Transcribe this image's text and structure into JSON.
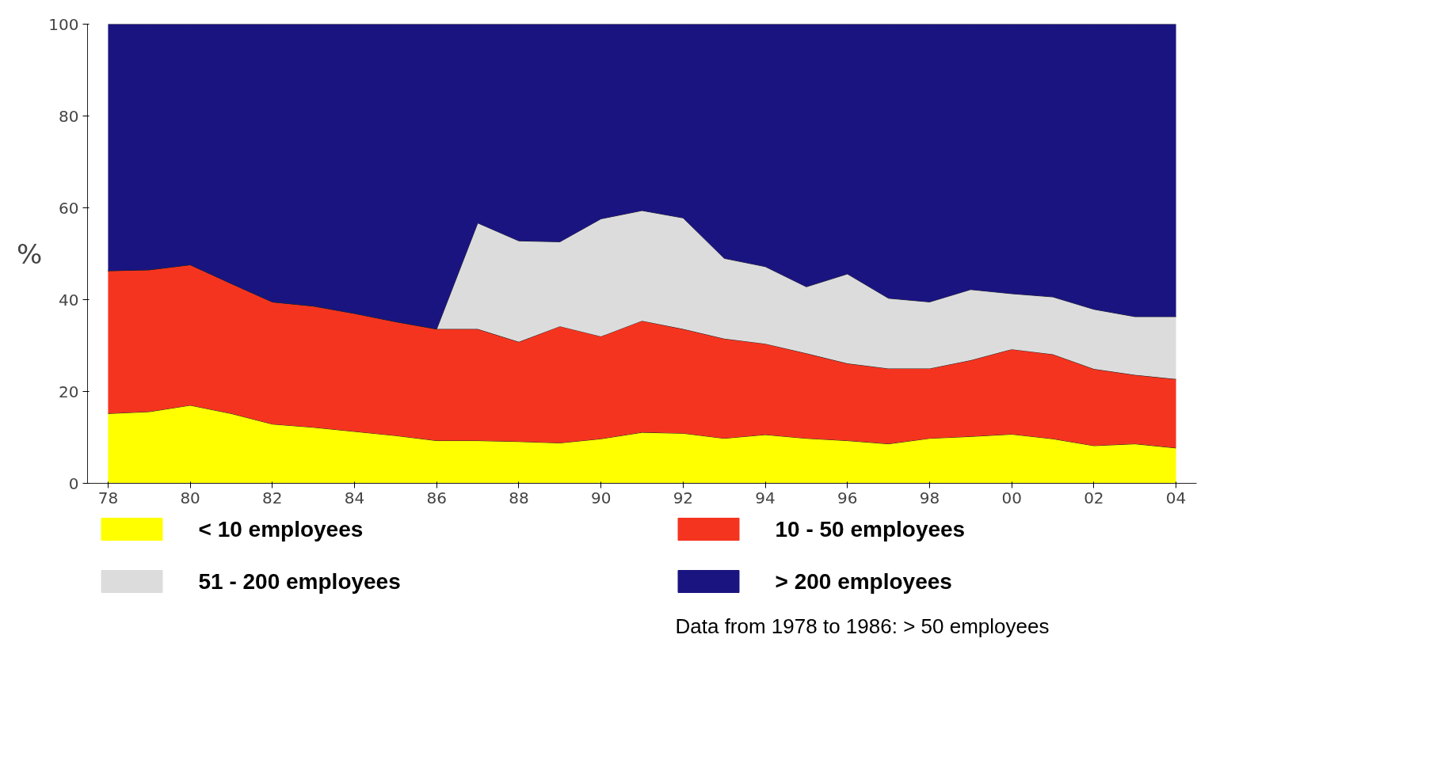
{
  "chart_data": {
    "type": "area",
    "stacked": true,
    "ylabel": "%",
    "legend": "bottom",
    "grid": false,
    "x": [
      1978,
      1979,
      1980,
      1981,
      1982,
      1983,
      1984,
      1985,
      1986,
      1987,
      1988,
      1989,
      1990,
      1991,
      1992,
      1993,
      1994,
      1995,
      1996,
      1997,
      1998,
      1999,
      2000,
      2001,
      2002,
      2003,
      2004
    ],
    "xlim": [
      1977.5,
      2004.5
    ],
    "xticks": [
      {
        "value": 1978,
        "label": "78"
      },
      {
        "value": 1980,
        "label": "80"
      },
      {
        "value": 1982,
        "label": "82"
      },
      {
        "value": 1984,
        "label": "84"
      },
      {
        "value": 1986,
        "label": "86"
      },
      {
        "value": 1988,
        "label": "88"
      },
      {
        "value": 1990,
        "label": "90"
      },
      {
        "value": 1992,
        "label": "92"
      },
      {
        "value": 1994,
        "label": "94"
      },
      {
        "value": 1996,
        "label": "96"
      },
      {
        "value": 1998,
        "label": "98"
      },
      {
        "value": 2000,
        "label": "00"
      },
      {
        "value": 2002,
        "label": "02"
      },
      {
        "value": 2004,
        "label": "04"
      }
    ],
    "ylim": [
      0,
      100
    ],
    "yticks": [
      0,
      20,
      40,
      60,
      80,
      100
    ],
    "series": [
      {
        "name": "< 10 employees",
        "color": "#ffff00",
        "values": [
          15.2,
          15.6,
          17.0,
          15.2,
          12.9,
          12.2,
          11.3,
          10.4,
          9.3,
          9.3,
          9.1,
          8.8,
          9.7,
          11.1,
          10.9,
          9.8,
          10.6,
          9.8,
          9.3,
          8.6,
          9.8,
          10.2,
          10.7,
          9.7,
          8.2,
          8.6,
          7.7
        ]
      },
      {
        "name": "10 - 50 employees",
        "color": "#f5341f",
        "values": [
          31.1,
          30.9,
          30.6,
          28.3,
          26.6,
          26.4,
          25.7,
          24.8,
          24.3,
          24.3,
          21.7,
          25.4,
          22.3,
          24.3,
          22.7,
          21.7,
          19.8,
          18.5,
          16.8,
          16.4,
          15.2,
          16.6,
          18.5,
          18.4,
          16.7,
          15.0,
          15.0
        ]
      },
      {
        "name": "51 - 200 employees",
        "color": "#dcdcdc",
        "values": [
          0,
          0,
          0,
          0,
          0,
          0,
          0,
          0,
          0,
          23.1,
          22.0,
          18.4,
          25.6,
          24.0,
          24.2,
          17.5,
          16.8,
          14.5,
          19.5,
          15.3,
          14.5,
          15.4,
          12.1,
          12.5,
          13.0,
          12.7,
          13.6
        ]
      },
      {
        "name": "> 200 employees",
        "color": "#1a1480",
        "values": [
          53.7,
          53.5,
          52.4,
          56.5,
          60.5,
          61.4,
          63.0,
          64.8,
          66.4,
          43.3,
          47.2,
          47.4,
          42.4,
          40.6,
          42.2,
          51.0,
          52.8,
          57.2,
          54.4,
          59.7,
          60.5,
          57.8,
          58.7,
          59.4,
          62.1,
          63.7,
          63.7
        ]
      }
    ],
    "annotations": [
      "Data from 1978 to 1986: > 50 employees"
    ]
  }
}
